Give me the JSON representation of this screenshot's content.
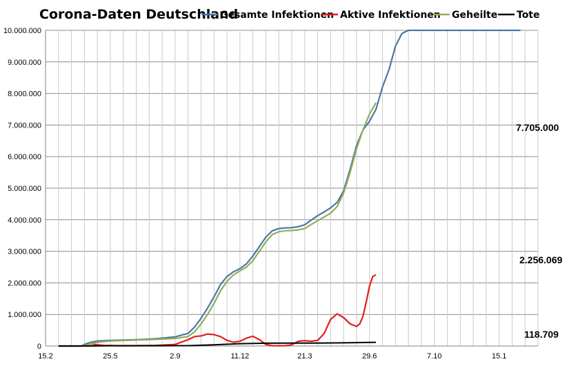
{
  "chart_data": {
    "type": "line",
    "title": "Corona-Daten Deutschland",
    "xlabel": "",
    "ylabel": "",
    "x_tick_labels": [
      "15.2",
      "25.5",
      "2.9",
      "11.12",
      "21.3",
      "29.6",
      "7.10",
      "15.1"
    ],
    "y_tick_labels": [
      "0",
      "1.000.000",
      "2.000.000",
      "3.000.000",
      "4.000.000",
      "5.000.000",
      "6.000.000",
      "7.000.000",
      "8.000.000",
      "9.000.000",
      "10.000.000"
    ],
    "ylim": [
      0,
      10000000
    ],
    "x_axis_note": "daily dates; tick labels every 100 days starting at 15.2",
    "grid": true,
    "legend": "top",
    "series": [
      {
        "name": "Gesamte Infektionen",
        "color": "#4a77a8",
        "x": [
          0,
          20,
          35,
          40,
          50,
          60,
          80,
          100,
          120,
          150,
          180,
          200,
          210,
          220,
          230,
          240,
          250,
          260,
          270,
          280,
          290,
          300,
          310,
          320,
          330,
          340,
          350,
          360,
          370,
          380,
          390,
          400,
          410,
          420,
          430,
          440,
          450,
          460,
          470,
          480,
          490,
          500,
          510,
          520,
          530,
          540,
          550,
          560,
          570,
          580,
          590,
          600,
          610,
          620,
          630,
          640,
          650,
          660,
          670,
          680,
          690,
          700,
          705,
          710,
          713
        ],
        "values": [
          0,
          0,
          0,
          50000,
          120000,
          160000,
          180000,
          190000,
          200000,
          230000,
          290000,
          400000,
          600000,
          880000,
          1200000,
          1560000,
          1950000,
          2200000,
          2350000,
          2450000,
          2600000,
          2850000,
          3150000,
          3450000,
          3650000,
          3720000,
          3740000,
          3750000,
          3780000,
          3840000,
          3990000,
          4130000,
          4250000,
          4380000,
          4550000,
          4920000,
          5600000,
          6350000,
          6850000,
          7120000,
          7500000,
          8200000,
          8750000,
          9500000,
          9900000,
          10000000,
          10000000,
          10000000,
          10000000,
          10000000,
          10000000,
          10000000,
          10000000,
          10000000,
          10000000,
          10000000,
          10000000,
          10000000,
          10000000,
          10000000,
          10000000,
          10000000,
          10000000,
          10000000,
          10000000
        ]
      },
      {
        "name": "Aktive Infektionen",
        "color": "#e01e1e",
        "x": [
          0,
          20,
          35,
          40,
          50,
          60,
          70,
          90,
          120,
          150,
          180,
          200,
          210,
          220,
          230,
          240,
          250,
          260,
          270,
          280,
          290,
          300,
          310,
          320,
          330,
          340,
          350,
          360,
          370,
          380,
          390,
          400,
          410,
          420,
          430,
          440,
          450,
          460,
          465,
          470,
          475,
          480,
          485,
          490
        ],
        "values": [
          0,
          0,
          0,
          20000,
          60000,
          40000,
          20000,
          10000,
          12000,
          20000,
          50000,
          200000,
          300000,
          320000,
          380000,
          360000,
          300000,
          180000,
          120000,
          150000,
          250000,
          310000,
          200000,
          50000,
          10000,
          8000,
          10000,
          40000,
          150000,
          170000,
          150000,
          180000,
          400000,
          850000,
          1020000,
          900000,
          700000,
          620000,
          700000,
          950000,
          1400000,
          1900000,
          2200000,
          2256069
        ]
      },
      {
        "name": "Geheilte",
        "color": "#93ac55",
        "x": [
          0,
          20,
          35,
          40,
          50,
          60,
          80,
          100,
          120,
          150,
          180,
          200,
          210,
          220,
          230,
          240,
          250,
          260,
          270,
          280,
          290,
          300,
          310,
          320,
          330,
          340,
          350,
          360,
          370,
          380,
          390,
          400,
          410,
          420,
          430,
          440,
          450,
          460,
          470,
          480,
          490
        ],
        "values": [
          0,
          0,
          0,
          10000,
          60000,
          120000,
          160000,
          175000,
          190000,
          210000,
          240000,
          300000,
          450000,
          700000,
          1000000,
          1350000,
          1750000,
          2050000,
          2250000,
          2380000,
          2500000,
          2700000,
          3000000,
          3300000,
          3530000,
          3620000,
          3650000,
          3660000,
          3680000,
          3720000,
          3850000,
          3970000,
          4090000,
          4210000,
          4420000,
          4850000,
          5500000,
          6250000,
          6850000,
          7350000,
          7705000
        ]
      },
      {
        "name": "Tote",
        "color": "#000000",
        "x": [
          0,
          40,
          80,
          120,
          160,
          200,
          240,
          280,
          320,
          360,
          400,
          440,
          480,
          490
        ],
        "values": [
          0,
          0,
          9000,
          9300,
          9500,
          12000,
          40000,
          75000,
          90000,
          92000,
          94000,
          100000,
          115000,
          118709
        ]
      }
    ],
    "annotations": [
      "7.705.000",
      "2.256.069",
      "118.709"
    ]
  }
}
